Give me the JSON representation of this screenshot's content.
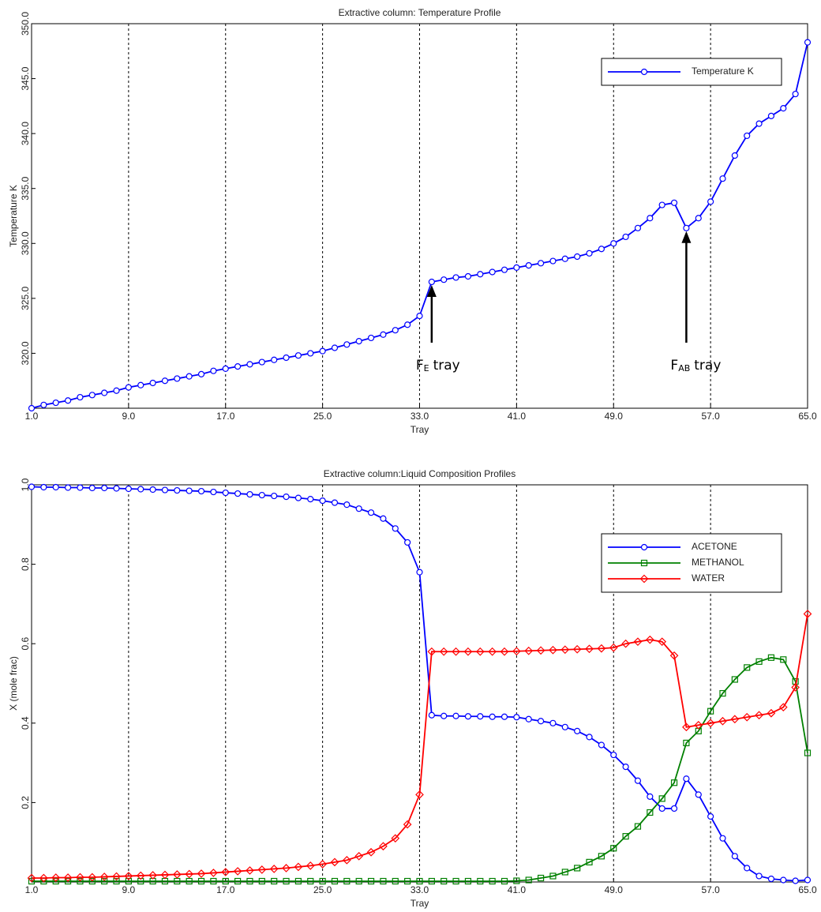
{
  "chart_data": [
    {
      "type": "line",
      "title": "Extractive column: Temperature Profile",
      "x_label": "Tray",
      "y_label": "Temperature K",
      "x": [
        1,
        2,
        3,
        4,
        5,
        6,
        7,
        8,
        9,
        10,
        11,
        12,
        13,
        14,
        15,
        16,
        17,
        18,
        19,
        20,
        21,
        22,
        23,
        24,
        25,
        26,
        27,
        28,
        29,
        30,
        31,
        32,
        33,
        34,
        35,
        36,
        37,
        38,
        39,
        40,
        41,
        42,
        43,
        44,
        45,
        46,
        47,
        48,
        49,
        50,
        51,
        52,
        53,
        54,
        55,
        56,
        57,
        58,
        59,
        60,
        61,
        62,
        63,
        64,
        65
      ],
      "series": [
        {
          "name": "Temperature K",
          "color": "#0000ff",
          "marker": "circle",
          "values": [
            315.0,
            315.3,
            315.5,
            315.7,
            316.0,
            316.2,
            316.4,
            316.6,
            316.9,
            317.1,
            317.3,
            317.5,
            317.7,
            317.9,
            318.1,
            318.4,
            318.6,
            318.8,
            319.0,
            319.2,
            319.4,
            319.6,
            319.8,
            320.0,
            320.2,
            320.5,
            320.8,
            321.1,
            321.4,
            321.7,
            322.1,
            322.6,
            323.4,
            326.5,
            326.7,
            326.9,
            327.0,
            327.2,
            327.4,
            327.6,
            327.8,
            328.0,
            328.2,
            328.4,
            328.6,
            328.8,
            329.1,
            329.5,
            330.0,
            330.6,
            331.4,
            332.3,
            333.5,
            333.7,
            331.4,
            332.3,
            333.8,
            335.9,
            338.0,
            339.8,
            340.9,
            341.6,
            342.3,
            343.6,
            348.3
          ]
        }
      ],
      "xlim": [
        1,
        65
      ],
      "xticks": [
        {
          "value": 1,
          "label": "1.0"
        },
        {
          "value": 9,
          "label": "9.0"
        },
        {
          "value": 17,
          "label": "17.0"
        },
        {
          "value": 25,
          "label": "25.0"
        },
        {
          "value": 33,
          "label": "33.0"
        },
        {
          "value": 41,
          "label": "41.0"
        },
        {
          "value": 49,
          "label": "49.0"
        },
        {
          "value": 57,
          "label": "57.0"
        },
        {
          "value": 65,
          "label": "65.0"
        }
      ],
      "ylim": [
        315,
        350
      ],
      "yticks": [
        {
          "value": 320,
          "label": "320.0"
        },
        {
          "value": 325,
          "label": "325.0"
        },
        {
          "value": 330,
          "label": "330.0"
        },
        {
          "value": 335,
          "label": "335.0"
        },
        {
          "value": 340,
          "label": "340.0"
        },
        {
          "value": 345,
          "label": "345.0"
        },
        {
          "value": 350,
          "label": "350.0"
        }
      ],
      "grid": "x-dashed",
      "legend": "upper right",
      "annotations": [
        {
          "text": "F",
          "subscript": "E",
          "suffix": "tray",
          "x": 34
        },
        {
          "text": "F",
          "subscript": "AB",
          "suffix": "tray",
          "x": 55
        }
      ]
    },
    {
      "type": "line",
      "title": "Extractive column:Liquid Composition Profiles",
      "x_label": "Tray",
      "y_label": "X  (mole frac)",
      "x": [
        1,
        2,
        3,
        4,
        5,
        6,
        7,
        8,
        9,
        10,
        11,
        12,
        13,
        14,
        15,
        16,
        17,
        18,
        19,
        20,
        21,
        22,
        23,
        24,
        25,
        26,
        27,
        28,
        29,
        30,
        31,
        32,
        33,
        34,
        35,
        36,
        37,
        38,
        39,
        40,
        41,
        42,
        43,
        44,
        45,
        46,
        47,
        48,
        49,
        50,
        51,
        52,
        53,
        54,
        55,
        56,
        57,
        58,
        59,
        60,
        61,
        62,
        63,
        64,
        65
      ],
      "series": [
        {
          "name": "ACETONE",
          "color": "#0000ff",
          "marker": "circle",
          "values": [
            0.995,
            0.994,
            0.994,
            0.993,
            0.993,
            0.992,
            0.992,
            0.991,
            0.99,
            0.989,
            0.988,
            0.987,
            0.986,
            0.985,
            0.984,
            0.982,
            0.98,
            0.978,
            0.976,
            0.974,
            0.972,
            0.97,
            0.967,
            0.964,
            0.96,
            0.955,
            0.95,
            0.94,
            0.93,
            0.915,
            0.89,
            0.855,
            0.78,
            0.42,
            0.418,
            0.418,
            0.417,
            0.417,
            0.416,
            0.416,
            0.415,
            0.41,
            0.405,
            0.4,
            0.39,
            0.38,
            0.365,
            0.345,
            0.32,
            0.29,
            0.255,
            0.215,
            0.185,
            0.185,
            0.26,
            0.22,
            0.165,
            0.11,
            0.065,
            0.035,
            0.015,
            0.008,
            0.005,
            0.003,
            0.005
          ]
        },
        {
          "name": "METHANOL",
          "color": "#008000",
          "marker": "square",
          "values": [
            0.002,
            0.002,
            0.002,
            0.002,
            0.002,
            0.002,
            0.002,
            0.002,
            0.002,
            0.002,
            0.002,
            0.002,
            0.002,
            0.002,
            0.002,
            0.002,
            0.002,
            0.002,
            0.002,
            0.002,
            0.002,
            0.002,
            0.002,
            0.002,
            0.002,
            0.002,
            0.002,
            0.002,
            0.002,
            0.002,
            0.002,
            0.002,
            0.002,
            0.002,
            0.002,
            0.002,
            0.002,
            0.002,
            0.002,
            0.002,
            0.003,
            0.005,
            0.01,
            0.015,
            0.025,
            0.035,
            0.05,
            0.065,
            0.085,
            0.115,
            0.14,
            0.175,
            0.21,
            0.25,
            0.35,
            0.38,
            0.43,
            0.475,
            0.51,
            0.54,
            0.555,
            0.565,
            0.56,
            0.505,
            0.325
          ]
        },
        {
          "name": "WATER",
          "color": "#ff0000",
          "marker": "diamond",
          "values": [
            0.01,
            0.01,
            0.011,
            0.011,
            0.012,
            0.012,
            0.013,
            0.014,
            0.015,
            0.016,
            0.017,
            0.018,
            0.019,
            0.02,
            0.021,
            0.023,
            0.025,
            0.027,
            0.029,
            0.031,
            0.033,
            0.035,
            0.038,
            0.041,
            0.045,
            0.05,
            0.055,
            0.065,
            0.075,
            0.09,
            0.11,
            0.145,
            0.22,
            0.58,
            0.58,
            0.58,
            0.58,
            0.58,
            0.58,
            0.58,
            0.581,
            0.582,
            0.583,
            0.584,
            0.585,
            0.586,
            0.587,
            0.588,
            0.59,
            0.6,
            0.605,
            0.61,
            0.605,
            0.57,
            0.39,
            0.395,
            0.4,
            0.405,
            0.41,
            0.415,
            0.42,
            0.425,
            0.44,
            0.49,
            0.675
          ]
        }
      ],
      "xlim": [
        1,
        65
      ],
      "xticks": [
        {
          "value": 1,
          "label": "1.0"
        },
        {
          "value": 9,
          "label": "9.0"
        },
        {
          "value": 17,
          "label": "17.0"
        },
        {
          "value": 25,
          "label": "25.0"
        },
        {
          "value": 33,
          "label": "33.0"
        },
        {
          "value": 41,
          "label": "41.0"
        },
        {
          "value": 49,
          "label": "49.0"
        },
        {
          "value": 57,
          "label": "57.0"
        },
        {
          "value": 65,
          "label": "65.0"
        }
      ],
      "ylim": [
        0,
        1
      ],
      "yticks": [
        0.2,
        0.4,
        0.6,
        0.8,
        {
          "value": 1,
          "label": "1.0"
        }
      ],
      "grid": "x-dashed",
      "legend": "right"
    }
  ]
}
